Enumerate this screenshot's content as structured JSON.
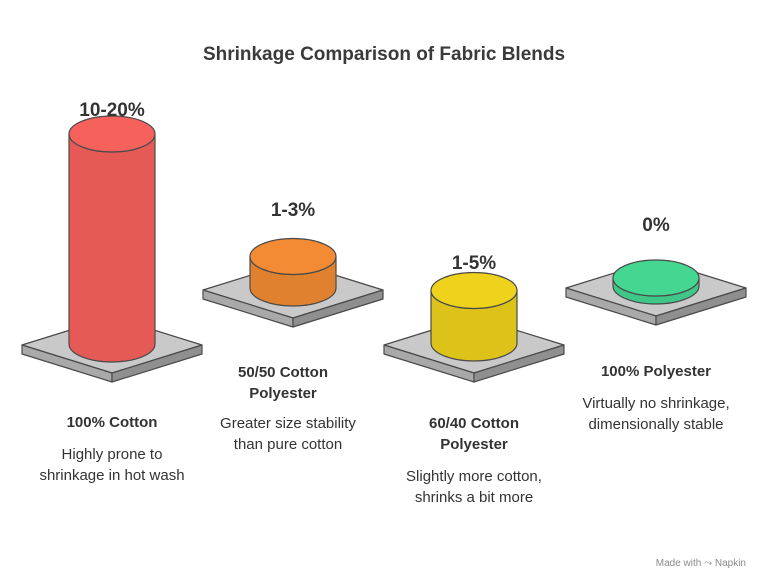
{
  "chart_data": {
    "type": "bar",
    "title": "Shrinkage Comparison of Fabric Blends",
    "categories": [
      "100% Cotton",
      "50/50 Cotton Polyester",
      "60/40 Cotton Polyester",
      "100% Polyester"
    ],
    "value_labels": [
      "10-20%",
      "1-3%",
      "1-5%",
      "0%"
    ],
    "values_range": [
      [
        10,
        20
      ],
      [
        1,
        3
      ],
      [
        1,
        5
      ],
      [
        0,
        0
      ]
    ],
    "descriptions": [
      "Highly prone to shrinkage in hot wash",
      "Greater size stability than pure cotton",
      "Slightly more cotton, shrinks a bit more",
      "Virtually no shrinkage, dimensionally stable"
    ],
    "colors": [
      "#e55a55",
      "#e0812f",
      "#ddc21a",
      "#3ec786"
    ]
  },
  "watermark": "Made with ⤳ Napkin"
}
